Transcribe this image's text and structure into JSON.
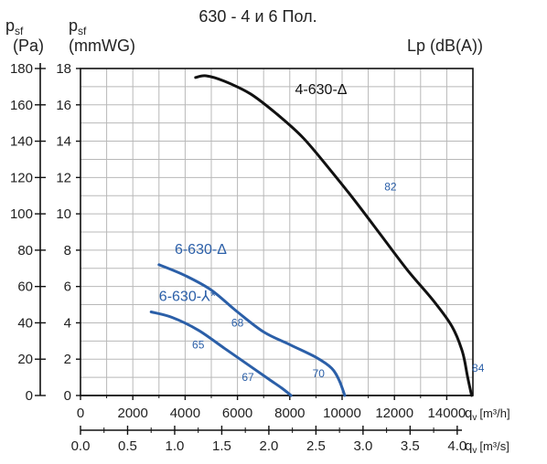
{
  "chart_data": {
    "type": "line",
    "title": "630 - 4 и 6 Пол.",
    "y_left": {
      "symbol": "p",
      "sub": "sf",
      "unit": "(Pa)",
      "ticks": [
        "0",
        "20",
        "40",
        "60",
        "80",
        "100",
        "120",
        "140",
        "160",
        "180"
      ],
      "ylim": [
        0,
        180
      ]
    },
    "y_right_inner": {
      "symbol": "p",
      "sub": "sf",
      "unit": "(mmWG)",
      "ticks": [
        "0",
        "2",
        "4",
        "6",
        "8",
        "10",
        "12",
        "14",
        "16",
        "18"
      ],
      "ylim": [
        0,
        18
      ]
    },
    "noise_label": "Lp (dB(A))",
    "x_m3h": {
      "label_symbol": "q",
      "label_sub": "v",
      "label_unit": "[m³/h]",
      "ticks": [
        "0",
        "2000",
        "4000",
        "6000",
        "8000",
        "10000",
        "12000",
        "14000"
      ],
      "xlim": [
        0,
        15000
      ]
    },
    "x_m3s": {
      "label_symbol": "q",
      "label_sub": "v",
      "label_unit": "[m³/s]",
      "ticks": [
        "0.0",
        "0.5",
        "1.0",
        "1.5",
        "2.0",
        "2.5",
        "3.0",
        "3.5",
        "4.0"
      ],
      "xlim": [
        0,
        4.1667
      ]
    },
    "grid": true,
    "series": [
      {
        "name": "4-630-Δ",
        "color": "#111111",
        "x": [
          4400,
          4800,
          5500,
          6500,
          7500,
          8500,
          9500,
          10500,
          11500,
          12500,
          13500,
          14200,
          14600,
          14800,
          14950
        ],
        "y": [
          17.5,
          17.6,
          17.3,
          16.6,
          15.5,
          14.2,
          12.5,
          10.7,
          8.8,
          6.9,
          5.2,
          3.8,
          2.4,
          1.0,
          0.0
        ]
      },
      {
        "name": "6-630-Δ",
        "color": "#2b5fa8",
        "x": [
          3000,
          4000,
          5000,
          6000,
          7000,
          8000,
          9000,
          9600,
          9900,
          10100
        ],
        "y": [
          7.2,
          6.6,
          5.8,
          4.6,
          3.5,
          2.8,
          2.1,
          1.5,
          0.8,
          0.0
        ]
      },
      {
        "name": "6-630-⅄*",
        "color": "#2b5fa8",
        "x": [
          2700,
          3500,
          4500,
          5500,
          6500,
          7200,
          7700,
          8050
        ],
        "y": [
          4.6,
          4.3,
          3.6,
          2.6,
          1.6,
          0.9,
          0.4,
          0.0
        ]
      }
    ],
    "noise_labels": [
      {
        "text": "82",
        "x": 11850,
        "y": 11.3,
        "color": "#2b5fa8"
      },
      {
        "text": "84",
        "x": 15200,
        "y": 1.3,
        "color": "#2b5fa8"
      },
      {
        "text": "68",
        "x": 6000,
        "y": 3.8,
        "color": "#2b5fa8"
      },
      {
        "text": "65",
        "x": 4500,
        "y": 2.6,
        "color": "#2b5fa8"
      },
      {
        "text": "70",
        "x": 9100,
        "y": 1.0,
        "color": "#2b5fa8"
      },
      {
        "text": "67",
        "x": 6400,
        "y": 0.8,
        "color": "#2b5fa8"
      }
    ],
    "curve_labels": [
      {
        "text": "4-630-Δ",
        "x": 8200,
        "y": 16.6,
        "color": "#111111"
      },
      {
        "text": "6-630-Δ",
        "x": 3600,
        "y": 7.8,
        "color": "#2b5fa8"
      },
      {
        "text": "6-630-⅄*",
        "x": 3000,
        "y": 5.2,
        "color": "#2b5fa8"
      }
    ]
  }
}
